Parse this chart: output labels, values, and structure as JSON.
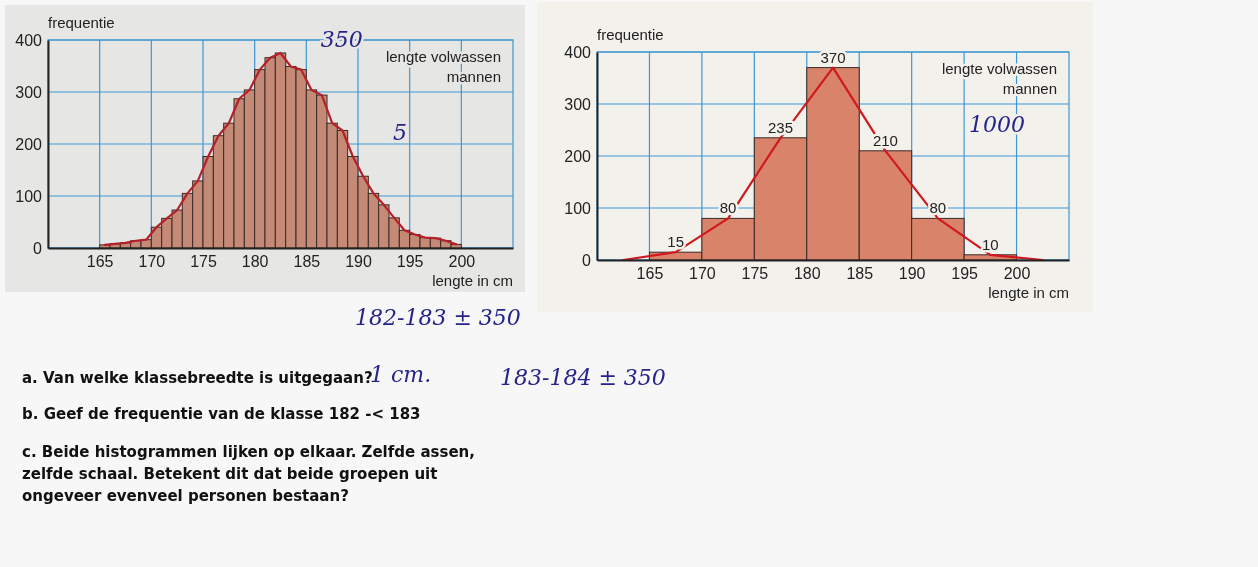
{
  "chart_data": [
    {
      "type": "histogram",
      "title": "lengte volwassen mannen",
      "xlabel": "lengte in cm",
      "ylabel": "frequentie",
      "color": "#c48a76",
      "grid": true,
      "bins": [
        165,
        166,
        167,
        168,
        169,
        170,
        171,
        172,
        173,
        174,
        175,
        176,
        177,
        178,
        179,
        180,
        181,
        182,
        183,
        184,
        185,
        186,
        187,
        188,
        189,
        190,
        191,
        192,
        193,
        194,
        195,
        196,
        197,
        198,
        199,
        200
      ],
      "values": [
        6,
        8,
        10,
        14,
        16,
        40,
        57,
        73,
        105,
        129,
        176,
        216,
        240,
        287,
        304,
        343,
        366,
        375,
        349,
        343,
        304,
        294,
        240,
        226,
        176,
        138,
        105,
        83,
        58,
        34,
        26,
        20,
        19,
        14,
        7
      ],
      "series": [
        {
          "type": "line",
          "color": "#b5202a",
          "x": [
            165.5,
            166.5,
            167.5,
            168.5,
            169.5,
            170.5,
            171.5,
            172.5,
            173.5,
            174.5,
            175.5,
            176.5,
            177.5,
            178.5,
            179.5,
            180.5,
            181.5,
            182.5,
            183.5,
            184.5,
            185.5,
            186.5,
            187.5,
            188.5,
            189.5,
            190.5,
            191.5,
            192.5,
            193.5,
            194.5,
            195.5,
            196.5,
            197.5,
            198.5,
            199.5
          ],
          "values": [
            6,
            8,
            10,
            14,
            16,
            40,
            57,
            73,
            105,
            129,
            176,
            216,
            240,
            287,
            304,
            343,
            366,
            375,
            349,
            343,
            304,
            294,
            240,
            226,
            176,
            138,
            105,
            83,
            58,
            34,
            26,
            20,
            19,
            14,
            7
          ]
        }
      ],
      "xlim": [
        160,
        205
      ],
      "xticks": [
        165,
        170,
        175,
        180,
        185,
        190,
        195,
        200
      ],
      "ylim": [
        0,
        400
      ],
      "yticks": [
        0,
        100,
        200,
        300,
        400
      ],
      "annotations": [
        {
          "text": "350",
          "x": 183.5,
          "y": 349
        },
        "5"
      ]
    },
    {
      "type": "histogram",
      "title": "lengte volwassen mannen",
      "xlabel": "lengte in cm",
      "ylabel": "frequentie",
      "color": "#d9846a",
      "grid": true,
      "bins": [
        165,
        170,
        175,
        180,
        185,
        190,
        195,
        200
      ],
      "values": [
        15,
        80,
        235,
        370,
        210,
        80,
        10
      ],
      "value_labels": [
        "15",
        "80",
        "235",
        "370",
        "210",
        "80",
        "10"
      ],
      "series": [
        {
          "type": "line",
          "color": "#d0191e",
          "x": [
            162.5,
            167.5,
            172.5,
            177.5,
            182.5,
            187.5,
            192.5,
            197.5,
            202.5
          ],
          "values": [
            0,
            15,
            80,
            235,
            370,
            210,
            80,
            10,
            0
          ]
        }
      ],
      "xlim": [
        160,
        205
      ],
      "xticks": [
        165,
        170,
        175,
        180,
        185,
        190,
        195,
        200
      ],
      "ylim": [
        0,
        400
      ],
      "yticks": [
        0,
        100,
        200,
        300,
        400
      ],
      "annotations": [
        "1000"
      ]
    },
    {
      "type": "other",
      "annotations": [
        "a. Van welke klassebreedte is uitgegaan?",
        "b. Geef de frequentie van de klasse 182 -< 183",
        "c. Beide histogrammen lijken op elkaar. Zelfde assen, zelfde schaal. Betekent dit dat beide groepen uit ongeveer evenveel personen bestaan?",
        "1 cm.",
        "182-183 ± 350",
        "183-184 ± 350"
      ]
    }
  ]
}
